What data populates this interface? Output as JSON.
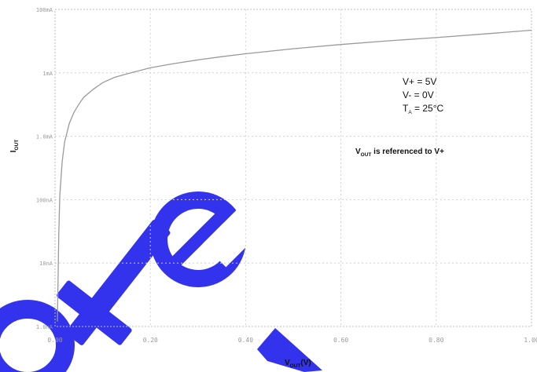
{
  "chart_data": {
    "type": "line",
    "title": "",
    "xlabel": {
      "main": "V",
      "sub": "OUT",
      "suffix": "(V)"
    },
    "ylabel": {
      "main": "I",
      "sub": "OUT"
    },
    "x_ticks": [
      "0.00",
      "0.20",
      "0.40",
      "0.60",
      "0.80",
      "1.00"
    ],
    "y_ticks": [
      "1.0nA",
      "10nA",
      "100nA",
      "1.0mA",
      "1mA",
      "100mA"
    ],
    "x_range": [
      0,
      1
    ],
    "y_scale": "log",
    "y_range": [
      1e-09,
      0.0001
    ],
    "grid": true,
    "conditions": [
      {
        "main": "V+ = 5V",
        "sub": "",
        "suffix": ""
      },
      {
        "main": "V- = 0V",
        "sub": "",
        "suffix": ""
      },
      {
        "main": "T",
        "sub": "A",
        "suffix": " = 25°C"
      }
    ],
    "annotation": {
      "main": "V",
      "sub": "OUT",
      "suffix": " is referenced to V+"
    },
    "watermark": "Obsolete",
    "series": [
      {
        "color": "#9a9a9a",
        "x": [
          0.005,
          0.008,
          0.01,
          0.015,
          0.02,
          0.03,
          0.04,
          0.05,
          0.06,
          0.08,
          0.1,
          0.125,
          0.15,
          0.2,
          0.25,
          0.3,
          0.35,
          0.4,
          0.5,
          0.6,
          0.7,
          0.8,
          0.9,
          1.0
        ],
        "y": [
          1.2e-09,
          3e-08,
          1.2e-07,
          4e-07,
          8e-07,
          1.6e-06,
          2.4e-06,
          3.2e-06,
          4.1e-06,
          5.5e-06,
          7e-06,
          8.5e-06,
          9.6e-06,
          1.2e-05,
          1.4e-05,
          1.6e-05,
          1.8e-05,
          2e-05,
          2.4e-05,
          2.8e-05,
          3.2e-05,
          3.6e-05,
          4.1e-05,
          4.7e-05
        ]
      }
    ]
  }
}
